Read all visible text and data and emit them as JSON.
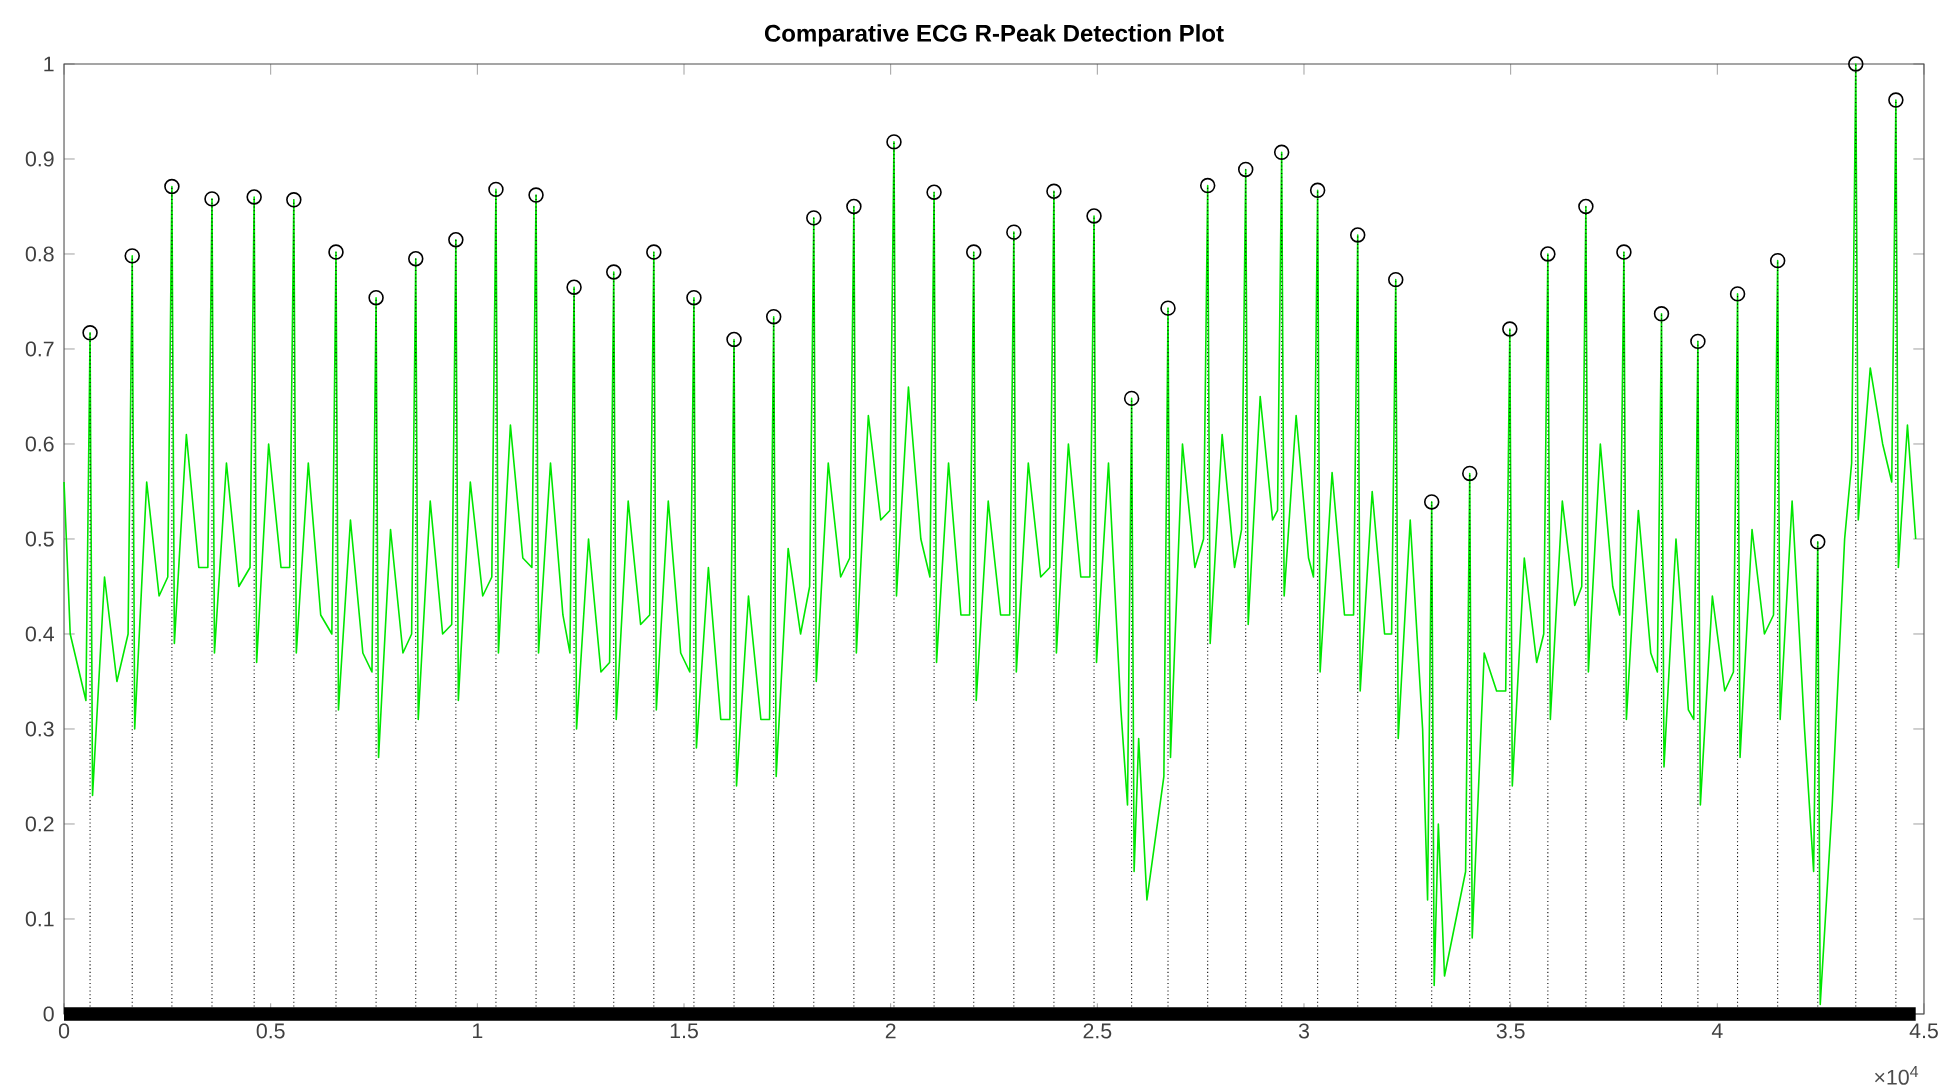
{
  "chart_data": {
    "type": "line",
    "title": "Comparative ECG R-Peak Detection Plot",
    "xlim": [
      0,
      4.5
    ],
    "ylim": [
      0,
      1
    ],
    "xticks": [
      0,
      0.5,
      1,
      1.5,
      2,
      2.5,
      3,
      3.5,
      4,
      4.5
    ],
    "yticks": [
      0,
      0.1,
      0.2,
      0.3,
      0.4,
      0.5,
      0.6,
      0.7,
      0.8,
      0.9,
      1
    ],
    "annotations": [
      "×10$^{4}$"
    ],
    "grid": false,
    "series": [
      {
        "color": "#00e600",
        "x": [
          0,
          0.015,
          0.053,
          0.063,
          0.069,
          0.098,
          0.128,
          0.155,
          0.165,
          0.171,
          0.2,
          0.23,
          0.251,
          0.261,
          0.267,
          0.296,
          0.326,
          0.348,
          0.358,
          0.364,
          0.393,
          0.423,
          0.45,
          0.46,
          0.466,
          0.495,
          0.525,
          0.546,
          0.556,
          0.562,
          0.591,
          0.621,
          0.648,
          0.658,
          0.664,
          0.693,
          0.723,
          0.745,
          0.755,
          0.761,
          0.79,
          0.82,
          0.841,
          0.851,
          0.857,
          0.886,
          0.916,
          0.938,
          0.948,
          0.954,
          0.983,
          1.013,
          1.035,
          1.045,
          1.051,
          1.08,
          1.11,
          1.132,
          1.142,
          1.148,
          1.177,
          1.207,
          1.224,
          1.234,
          1.24,
          1.269,
          1.299,
          1.32,
          1.33,
          1.336,
          1.365,
          1.395,
          1.417,
          1.427,
          1.433,
          1.462,
          1.492,
          1.514,
          1.524,
          1.53,
          1.559,
          1.589,
          1.611,
          1.621,
          1.627,
          1.656,
          1.686,
          1.707,
          1.717,
          1.723,
          1.752,
          1.782,
          1.804,
          1.814,
          1.82,
          1.849,
          1.879,
          1.901,
          1.911,
          1.917,
          1.946,
          1.976,
          1.998,
          2.008,
          2.014,
          2.043,
          2.073,
          2.095,
          2.105,
          2.111,
          2.14,
          2.17,
          2.191,
          2.201,
          2.207,
          2.236,
          2.266,
          2.288,
          2.298,
          2.304,
          2.333,
          2.363,
          2.385,
          2.395,
          2.401,
          2.43,
          2.46,
          2.482,
          2.492,
          2.498,
          2.527,
          2.557,
          2.573,
          2.583,
          2.589,
          2.6,
          2.62,
          2.661,
          2.671,
          2.677,
          2.706,
          2.736,
          2.757,
          2.767,
          2.773,
          2.802,
          2.832,
          2.849,
          2.859,
          2.865,
          2.894,
          2.924,
          2.936,
          2.946,
          2.952,
          2.981,
          3.011,
          3.023,
          3.033,
          3.039,
          3.068,
          3.098,
          3.12,
          3.13,
          3.136,
          3.165,
          3.195,
          3.212,
          3.222,
          3.228,
          3.257,
          3.287,
          3.299,
          3.309,
          3.315,
          3.325,
          3.34,
          3.391,
          3.401,
          3.407,
          3.436,
          3.466,
          3.488,
          3.498,
          3.504,
          3.533,
          3.563,
          3.58,
          3.59,
          3.596,
          3.625,
          3.655,
          3.672,
          3.682,
          3.688,
          3.717,
          3.747,
          3.764,
          3.774,
          3.78,
          3.809,
          3.839,
          3.855,
          3.865,
          3.871,
          3.9,
          3.93,
          3.943,
          3.953,
          3.959,
          3.988,
          4.018,
          4.039,
          4.049,
          4.055,
          4.084,
          4.114,
          4.136,
          4.146,
          4.152,
          4.181,
          4.211,
          4.233,
          4.243,
          4.249,
          4.278,
          4.308,
          4.325,
          4.335,
          4.341,
          4.37,
          4.4,
          4.422,
          4.432,
          4.438,
          4.46,
          4.48
        ],
        "values": [
          0.56,
          0.4,
          0.33,
          0.717,
          0.23,
          0.46,
          0.35,
          0.4,
          0.798,
          0.3,
          0.56,
          0.44,
          0.46,
          0.871,
          0.39,
          0.61,
          0.47,
          0.47,
          0.858,
          0.38,
          0.58,
          0.45,
          0.47,
          0.86,
          0.37,
          0.6,
          0.47,
          0.47,
          0.857,
          0.38,
          0.58,
          0.42,
          0.4,
          0.802,
          0.32,
          0.52,
          0.38,
          0.36,
          0.754,
          0.27,
          0.51,
          0.38,
          0.4,
          0.795,
          0.31,
          0.54,
          0.4,
          0.41,
          0.815,
          0.33,
          0.56,
          0.44,
          0.46,
          0.868,
          0.38,
          0.62,
          0.48,
          0.47,
          0.862,
          0.38,
          0.58,
          0.42,
          0.38,
          0.765,
          0.3,
          0.5,
          0.36,
          0.37,
          0.781,
          0.31,
          0.54,
          0.41,
          0.42,
          0.802,
          0.32,
          0.54,
          0.38,
          0.36,
          0.754,
          0.28,
          0.47,
          0.31,
          0.31,
          0.71,
          0.24,
          0.44,
          0.31,
          0.31,
          0.734,
          0.25,
          0.49,
          0.4,
          0.45,
          0.838,
          0.35,
          0.58,
          0.46,
          0.48,
          0.85,
          0.38,
          0.63,
          0.52,
          0.53,
          0.918,
          0.44,
          0.66,
          0.5,
          0.46,
          0.865,
          0.37,
          0.58,
          0.42,
          0.42,
          0.802,
          0.33,
          0.54,
          0.42,
          0.42,
          0.823,
          0.36,
          0.58,
          0.46,
          0.47,
          0.866,
          0.38,
          0.6,
          0.46,
          0.46,
          0.84,
          0.37,
          0.58,
          0.32,
          0.22,
          0.648,
          0.15,
          0.29,
          0.12,
          0.25,
          0.743,
          0.27,
          0.6,
          0.47,
          0.5,
          0.872,
          0.39,
          0.61,
          0.47,
          0.51,
          0.889,
          0.41,
          0.65,
          0.52,
          0.53,
          0.907,
          0.44,
          0.63,
          0.48,
          0.46,
          0.867,
          0.36,
          0.57,
          0.42,
          0.42,
          0.82,
          0.34,
          0.55,
          0.4,
          0.4,
          0.773,
          0.29,
          0.52,
          0.3,
          0.12,
          0.539,
          0.03,
          0.2,
          0.04,
          0.15,
          0.569,
          0.08,
          0.38,
          0.34,
          0.34,
          0.721,
          0.24,
          0.48,
          0.37,
          0.4,
          0.8,
          0.31,
          0.54,
          0.43,
          0.45,
          0.85,
          0.36,
          0.6,
          0.45,
          0.42,
          0.802,
          0.31,
          0.53,
          0.38,
          0.36,
          0.737,
          0.26,
          0.5,
          0.32,
          0.31,
          0.708,
          0.22,
          0.44,
          0.34,
          0.36,
          0.758,
          0.27,
          0.51,
          0.4,
          0.42,
          0.793,
          0.31,
          0.54,
          0.3,
          0.15,
          0.497,
          0.01,
          0.22,
          0.5,
          0.58,
          1.0,
          0.52,
          0.68,
          0.6,
          0.56,
          0.962,
          0.47,
          0.62,
          0.5
        ]
      },
      {
        "type": "lollipop",
        "color": "#000000",
        "marker": "circle",
        "line_style": "dotted",
        "x": [
          0.063,
          0.165,
          0.261,
          0.358,
          0.46,
          0.556,
          0.658,
          0.755,
          0.851,
          0.948,
          1.045,
          1.142,
          1.234,
          1.33,
          1.427,
          1.524,
          1.621,
          1.717,
          1.814,
          1.911,
          2.008,
          2.105,
          2.201,
          2.298,
          2.395,
          2.492,
          2.583,
          2.671,
          2.767,
          2.859,
          2.946,
          3.033,
          3.13,
          3.222,
          3.309,
          3.401,
          3.498,
          3.59,
          3.682,
          3.774,
          3.865,
          3.953,
          4.049,
          4.146,
          4.243,
          4.335,
          4.432
        ],
        "values": [
          0.717,
          0.798,
          0.871,
          0.858,
          0.86,
          0.857,
          0.802,
          0.754,
          0.795,
          0.815,
          0.868,
          0.862,
          0.765,
          0.781,
          0.802,
          0.754,
          0.71,
          0.734,
          0.838,
          0.85,
          0.918,
          0.865,
          0.802,
          0.823,
          0.866,
          0.84,
          0.648,
          0.743,
          0.872,
          0.889,
          0.907,
          0.867,
          0.82,
          0.773,
          0.539,
          0.569,
          0.721,
          0.8,
          0.85,
          0.802,
          0.737,
          0.708,
          0.758,
          0.793,
          0.497,
          1.0,
          0.962
        ]
      },
      {
        "color": "#000000",
        "x": [
          0,
          4.48
        ],
        "values": [
          0,
          0
        ]
      }
    ]
  }
}
